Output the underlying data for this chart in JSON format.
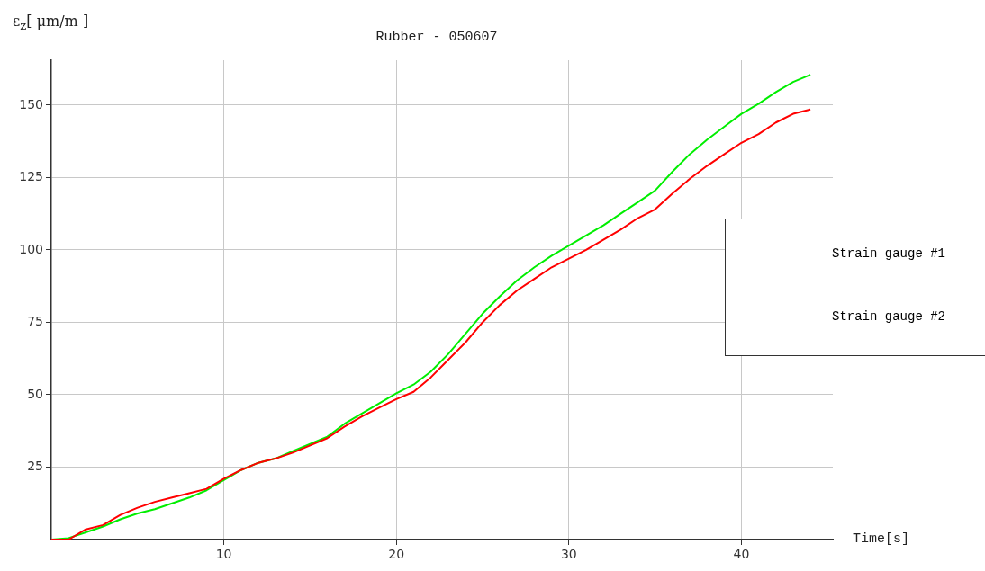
{
  "chart_data": {
    "type": "line",
    "title": "Rubber - 050607",
    "xlabel": "Time[s]",
    "ylabel": "ε$_{z}$[ μm/m ]",
    "xlim": [
      0,
      45.3
    ],
    "xticks": [
      10,
      20,
      30,
      40
    ],
    "ylim": [
      0,
      165.5
    ],
    "yticks": [
      25,
      50,
      75,
      100,
      125,
      150
    ],
    "grid": true,
    "legend": "right",
    "marker": "none",
    "line_style": "solid",
    "x": [
      0,
      1,
      2,
      3,
      4,
      5,
      6,
      7,
      8,
      9,
      10,
      11,
      12,
      13,
      14,
      15,
      16,
      17,
      18,
      19,
      20,
      21,
      22,
      23,
      24,
      25,
      26,
      27,
      28,
      29,
      30,
      31,
      32,
      33,
      34,
      35,
      36,
      37,
      38,
      39,
      40,
      41,
      42,
      43,
      44
    ],
    "series": [
      {
        "name": "Strain gauge #1",
        "color": "#ff0000",
        "values": [
          0,
          0,
          3.5,
          5,
          8.5,
          11,
          13,
          14.5,
          16,
          17.5,
          21,
          24,
          26.5,
          28,
          30,
          32.5,
          35,
          39,
          42.5,
          45.5,
          48.5,
          51,
          56,
          62,
          68,
          75,
          81,
          86,
          90,
          94,
          97,
          100,
          103.5,
          107,
          111,
          114,
          119.5,
          124.5,
          129,
          133,
          137,
          140,
          144,
          147,
          148.5
        ]
      },
      {
        "name": "Strain gauge #2",
        "color": "#00ee00",
        "values": [
          0,
          0.5,
          2.5,
          4.5,
          7,
          9,
          10.5,
          12.5,
          14.5,
          17,
          20.5,
          24,
          26.5,
          28,
          30.5,
          33,
          35.5,
          40,
          43.5,
          47,
          50.5,
          53.5,
          58,
          64,
          71,
          78,
          84,
          89.5,
          94,
          98,
          101.5,
          105,
          108.5,
          112.5,
          116.5,
          120.5,
          127,
          133,
          138,
          142.5,
          147,
          150.5,
          154.5,
          158,
          160.5
        ]
      }
    ]
  }
}
